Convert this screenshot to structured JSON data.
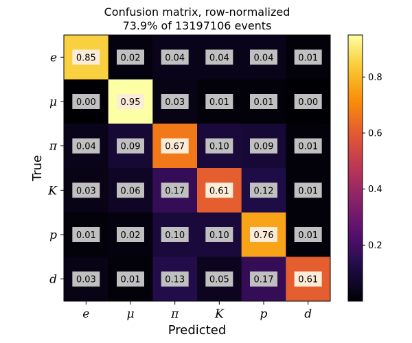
{
  "chart_data": {
    "type": "heatmap",
    "title_line1": "Confusion matrix, row-normalized",
    "title_line2": "73.9% of 13197106 events",
    "xlabel": "Predicted",
    "ylabel": "True",
    "x_categories": [
      "e",
      "μ",
      "π",
      "K",
      "p",
      "d"
    ],
    "y_categories": [
      "e",
      "μ",
      "π",
      "K",
      "p",
      "d"
    ],
    "values": [
      [
        0.85,
        0.02,
        0.04,
        0.04,
        0.04,
        0.01
      ],
      [
        0.0,
        0.95,
        0.03,
        0.01,
        0.01,
        0.0
      ],
      [
        0.04,
        0.09,
        0.67,
        0.1,
        0.09,
        0.01
      ],
      [
        0.03,
        0.06,
        0.17,
        0.61,
        0.12,
        0.01
      ],
      [
        0.01,
        0.02,
        0.1,
        0.1,
        0.76,
        0.01
      ],
      [
        0.03,
        0.01,
        0.13,
        0.05,
        0.17,
        0.61
      ]
    ],
    "value_format": "2 decimals",
    "colormap": "inferno",
    "colorbar": {
      "range": [
        0,
        0.95
      ],
      "ticks": [
        0.2,
        0.4,
        0.6,
        0.8
      ],
      "tick_labels": [
        "0.2",
        "0.4",
        "0.6",
        "0.8"
      ]
    },
    "grid": false
  }
}
